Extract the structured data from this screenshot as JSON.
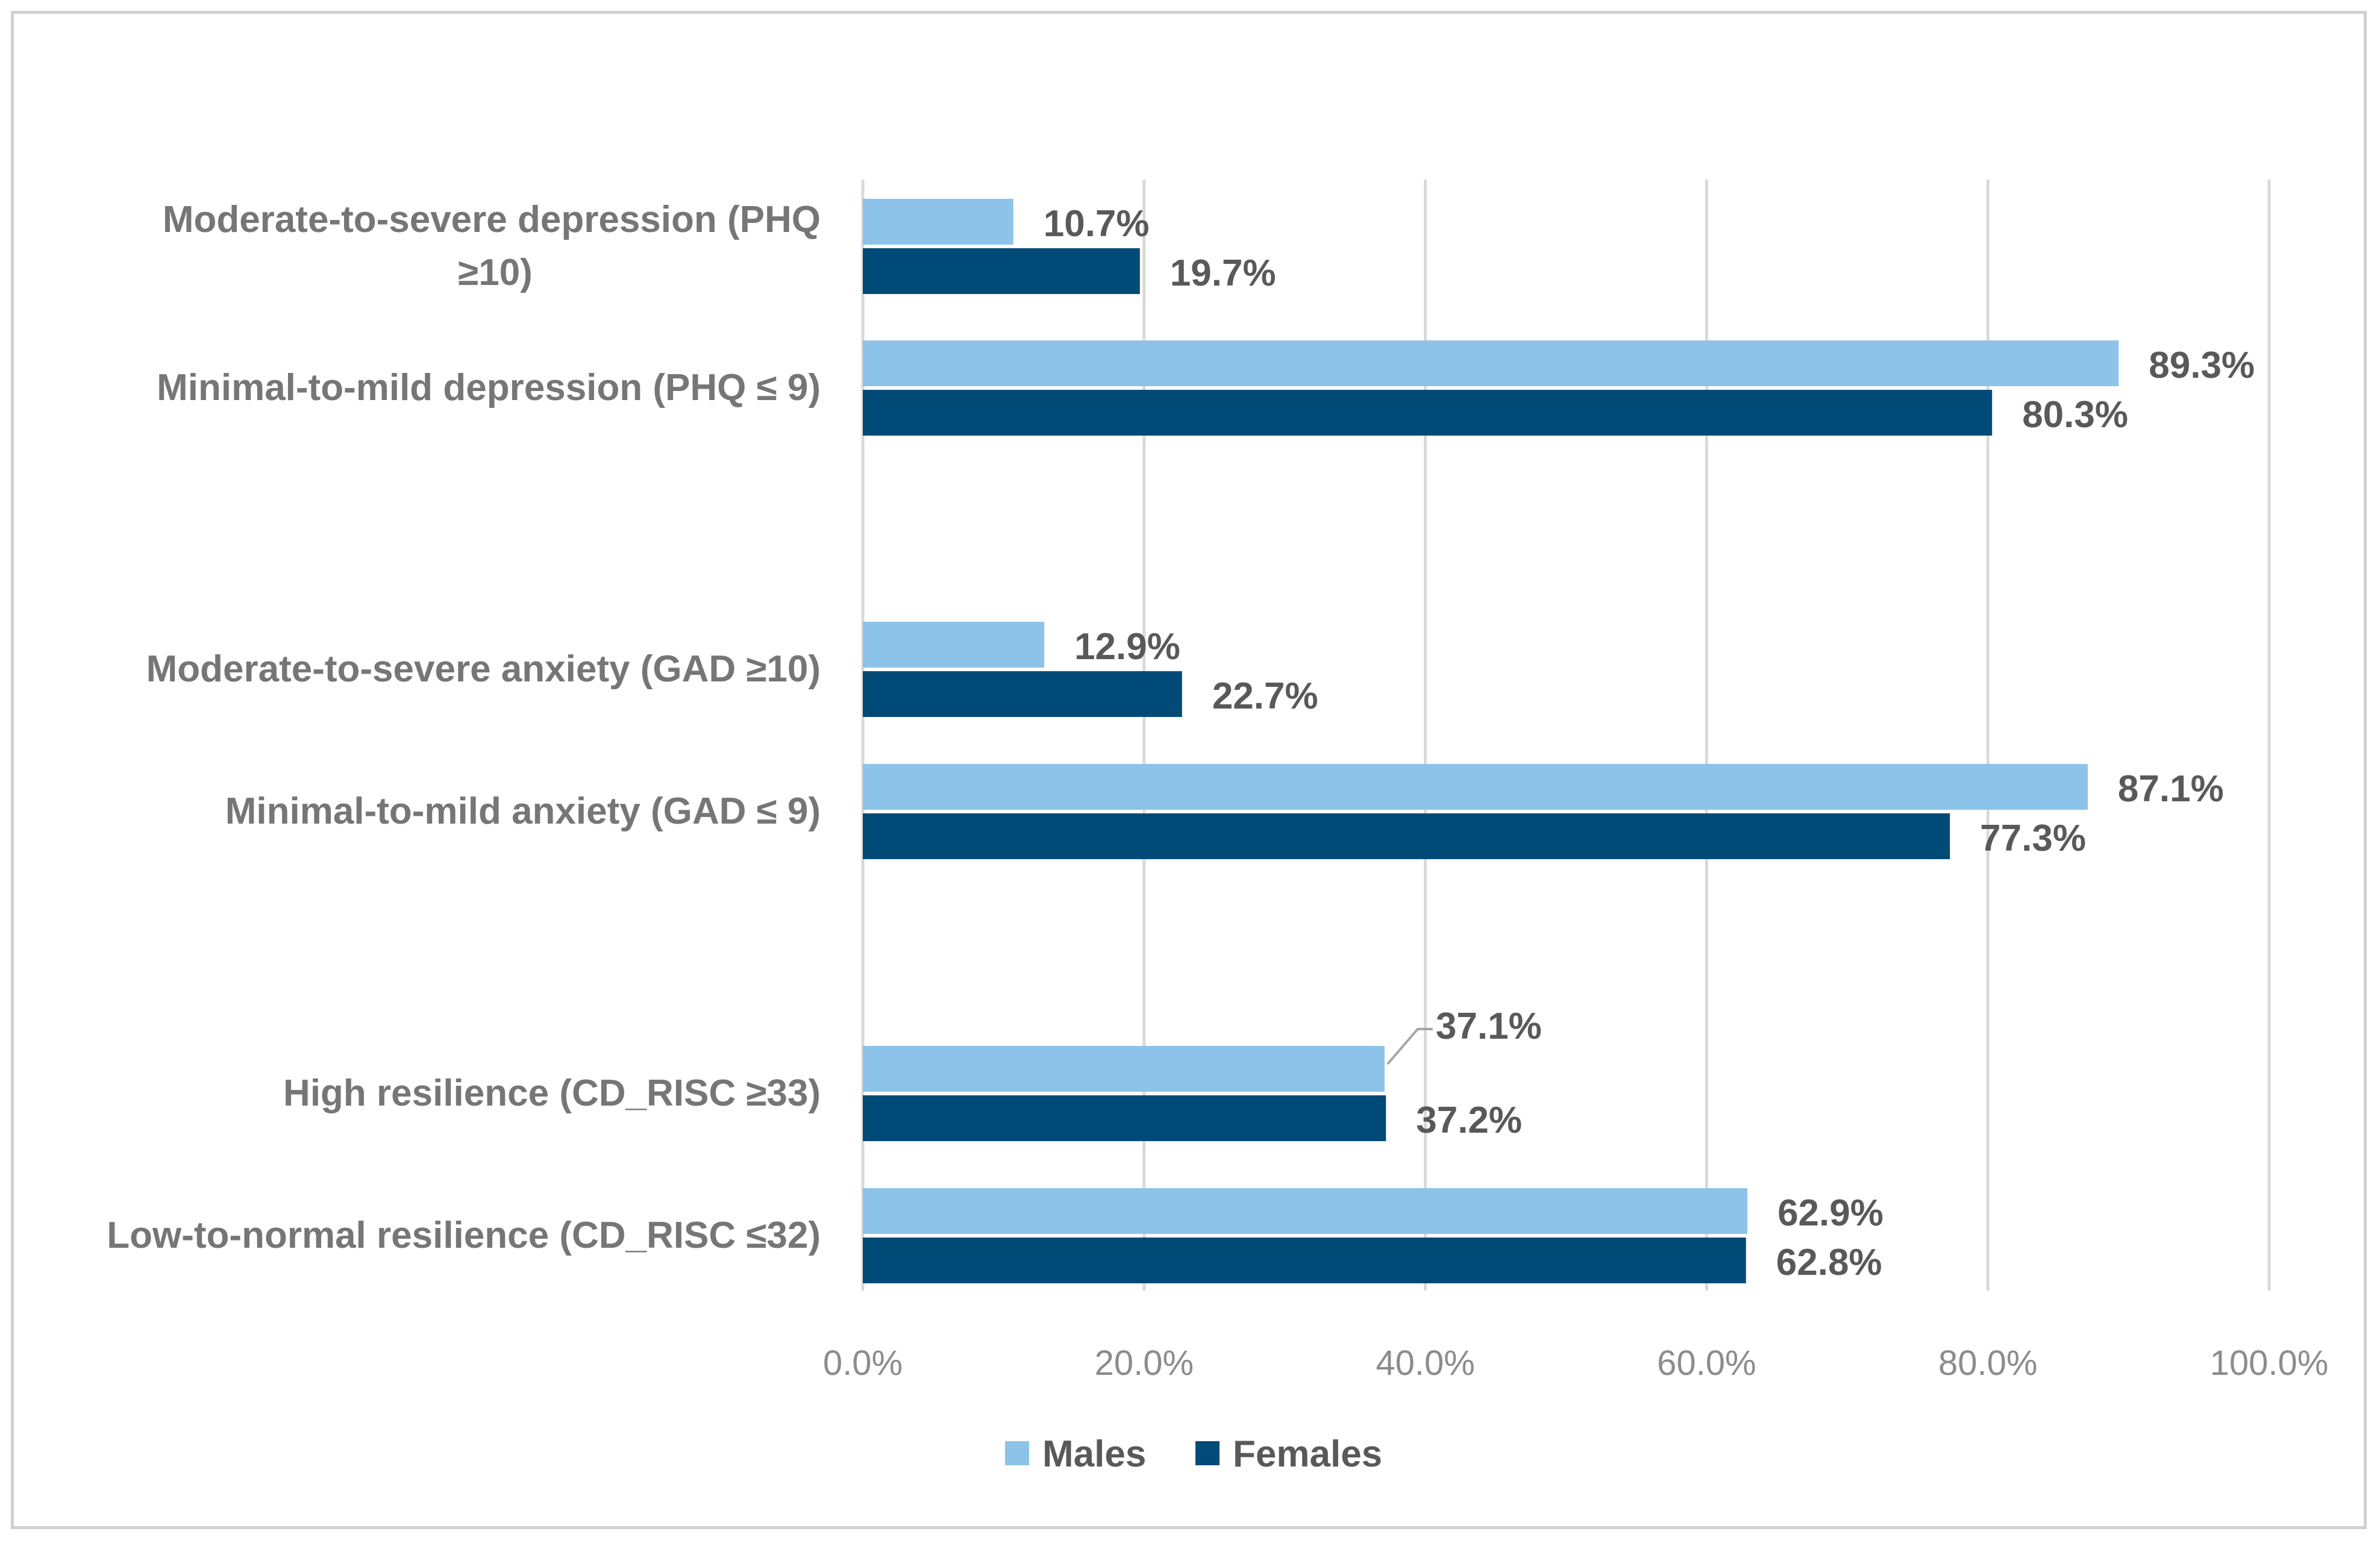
{
  "chart_data": {
    "type": "bar",
    "orientation": "horizontal",
    "title": "",
    "xlabel": "",
    "ylabel": "",
    "xlim": [
      0,
      100
    ],
    "grid": true,
    "legend_position": "bottom",
    "categories": [
      [
        "Moderate-to-severe depression (PHQ",
        "≥10)"
      ],
      [
        "Minimal-to-mild depression (PHQ ≤ 9)"
      ],
      [
        "Moderate-to-severe anxiety (GAD ≥10)"
      ],
      [
        "Minimal-to-mild anxiety (GAD ≤ 9)"
      ],
      [
        "High resilience (CD_RISC ≥33)"
      ],
      [
        "Low-to-normal resilience (CD_RISC ≤32)"
      ]
    ],
    "tick_labels": [
      "0.0%",
      "20.0%",
      "40.0%",
      "60.0%",
      "80.0%",
      "100.0%"
    ],
    "tick_values": [
      0,
      20,
      40,
      60,
      80,
      100
    ],
    "series": [
      {
        "name": "Males",
        "color": "#8dc3e8",
        "values": [
          10.7,
          89.3,
          12.9,
          87.1,
          37.1,
          62.9
        ],
        "labels": [
          "10.7%",
          "89.3%",
          "12.9%",
          "87.1%",
          "37.1%",
          "62.9%"
        ]
      },
      {
        "name": "Females",
        "color": "#004a78",
        "values": [
          19.7,
          80.3,
          22.7,
          77.3,
          37.2,
          62.8
        ],
        "labels": [
          "19.7%",
          "80.3%",
          "22.7%",
          "77.3%",
          "37.2%",
          "62.8%"
        ]
      }
    ]
  }
}
